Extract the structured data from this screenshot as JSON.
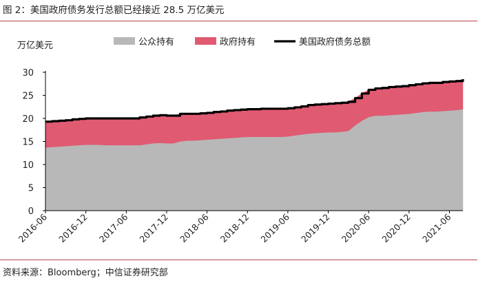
{
  "figure": {
    "title": "图 2：美国政府债务发行总额已经接近 28.5 万亿美元",
    "source": "资料来源：Bloomberg；中信证券研究部"
  },
  "chart_data": {
    "type": "area",
    "ylabel": "万亿美元",
    "ylim": [
      0,
      30
    ],
    "yticks": [
      0,
      5,
      10,
      15,
      20,
      25,
      30
    ],
    "xlim": [
      "2016-06",
      "2021-08"
    ],
    "xticks": [
      "2016-06",
      "2016-12",
      "2017-06",
      "2017-12",
      "2018-06",
      "2018-12",
      "2019-06",
      "2019-12",
      "2020-06",
      "2020-12",
      "2021-06"
    ],
    "legend_position": "top",
    "grid": false,
    "x": [
      "2016-06",
      "2016-07",
      "2016-08",
      "2016-09",
      "2016-10",
      "2016-11",
      "2016-12",
      "2017-01",
      "2017-02",
      "2017-03",
      "2017-04",
      "2017-05",
      "2017-06",
      "2017-07",
      "2017-08",
      "2017-09",
      "2017-10",
      "2017-11",
      "2017-12",
      "2018-01",
      "2018-02",
      "2018-03",
      "2018-04",
      "2018-05",
      "2018-06",
      "2018-07",
      "2018-08",
      "2018-09",
      "2018-10",
      "2018-11",
      "2018-12",
      "2019-01",
      "2019-02",
      "2019-03",
      "2019-04",
      "2019-05",
      "2019-06",
      "2019-07",
      "2019-08",
      "2019-09",
      "2019-10",
      "2019-11",
      "2019-12",
      "2020-01",
      "2020-02",
      "2020-03",
      "2020-04",
      "2020-05",
      "2020-06",
      "2020-07",
      "2020-08",
      "2020-09",
      "2020-10",
      "2020-11",
      "2020-12",
      "2021-01",
      "2021-02",
      "2021-03",
      "2021-04",
      "2021-05",
      "2021-06",
      "2021-07",
      "2021-08"
    ],
    "series": [
      {
        "name": "公众持有",
        "role": "stack",
        "color": "#b8b8b8",
        "values": [
          13.7,
          13.8,
          13.9,
          14.0,
          14.1,
          14.2,
          14.3,
          14.3,
          14.3,
          14.2,
          14.2,
          14.2,
          14.2,
          14.2,
          14.2,
          14.4,
          14.6,
          14.7,
          14.6,
          14.6,
          15.0,
          15.2,
          15.2,
          15.3,
          15.4,
          15.5,
          15.6,
          15.7,
          15.8,
          15.9,
          16.0,
          16.0,
          16.0,
          16.0,
          16.0,
          16.0,
          16.1,
          16.3,
          16.5,
          16.7,
          16.8,
          16.9,
          17.0,
          17.0,
          17.1,
          17.3,
          18.5,
          19.5,
          20.3,
          20.6,
          20.6,
          20.7,
          20.8,
          20.9,
          21.0,
          21.2,
          21.4,
          21.5,
          21.5,
          21.6,
          21.7,
          21.8,
          22.0
        ]
      },
      {
        "name": "政府持有",
        "role": "stack",
        "color": "#e05a71",
        "values": [
          5.6,
          5.6,
          5.6,
          5.6,
          5.7,
          5.7,
          5.7,
          5.7,
          5.7,
          5.8,
          5.8,
          5.8,
          5.8,
          5.8,
          6.0,
          6.0,
          6.0,
          6.0,
          6.0,
          6.0,
          6.0,
          5.8,
          5.8,
          5.8,
          5.8,
          5.9,
          5.9,
          6.0,
          6.0,
          6.0,
          6.0,
          6.0,
          6.1,
          6.1,
          6.1,
          6.1,
          6.1,
          6.1,
          6.1,
          6.2,
          6.2,
          6.2,
          6.2,
          6.3,
          6.3,
          6.3,
          5.9,
          5.9,
          5.9,
          5.9,
          6.0,
          6.1,
          6.1,
          6.1,
          6.2,
          6.2,
          6.2,
          6.2,
          6.2,
          6.3,
          6.3,
          6.3,
          6.5
        ]
      },
      {
        "name": "美国政府债务总额",
        "role": "line",
        "color": "#000000",
        "values": [
          19.3,
          19.4,
          19.5,
          19.6,
          19.8,
          19.9,
          20.0,
          20.0,
          20.0,
          20.0,
          20.0,
          20.0,
          20.0,
          20.0,
          20.2,
          20.4,
          20.6,
          20.7,
          20.6,
          20.6,
          21.0,
          21.0,
          21.0,
          21.1,
          21.2,
          21.4,
          21.5,
          21.7,
          21.8,
          21.9,
          22.0,
          22.0,
          22.1,
          22.1,
          22.1,
          22.1,
          22.2,
          22.4,
          22.6,
          22.9,
          23.0,
          23.1,
          23.2,
          23.3,
          23.4,
          23.6,
          24.4,
          25.4,
          26.2,
          26.5,
          26.6,
          26.8,
          26.9,
          27.0,
          27.2,
          27.4,
          27.6,
          27.7,
          27.7,
          27.9,
          28.0,
          28.1,
          28.5
        ]
      }
    ]
  }
}
